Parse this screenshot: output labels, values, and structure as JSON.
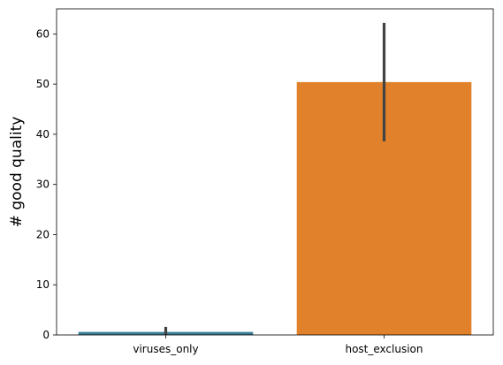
{
  "chart_data": {
    "type": "bar",
    "title": "",
    "xlabel": "",
    "ylabel": "# good quality",
    "categories": [
      "viruses_only",
      "host_exclusion"
    ],
    "values": [
      0.6,
      50.4
    ],
    "error_bars": [
      {
        "low": 0.0,
        "high": 1.6
      },
      {
        "low": 38.6,
        "high": 62.2
      }
    ],
    "bar_colors": [
      "#3a7d96",
      "#e1812c"
    ],
    "error_bar_color": "#424242",
    "ylim": [
      0,
      65
    ],
    "yticks": [
      0,
      10,
      20,
      30,
      40,
      50,
      60
    ],
    "grid": false,
    "legend": "none"
  }
}
